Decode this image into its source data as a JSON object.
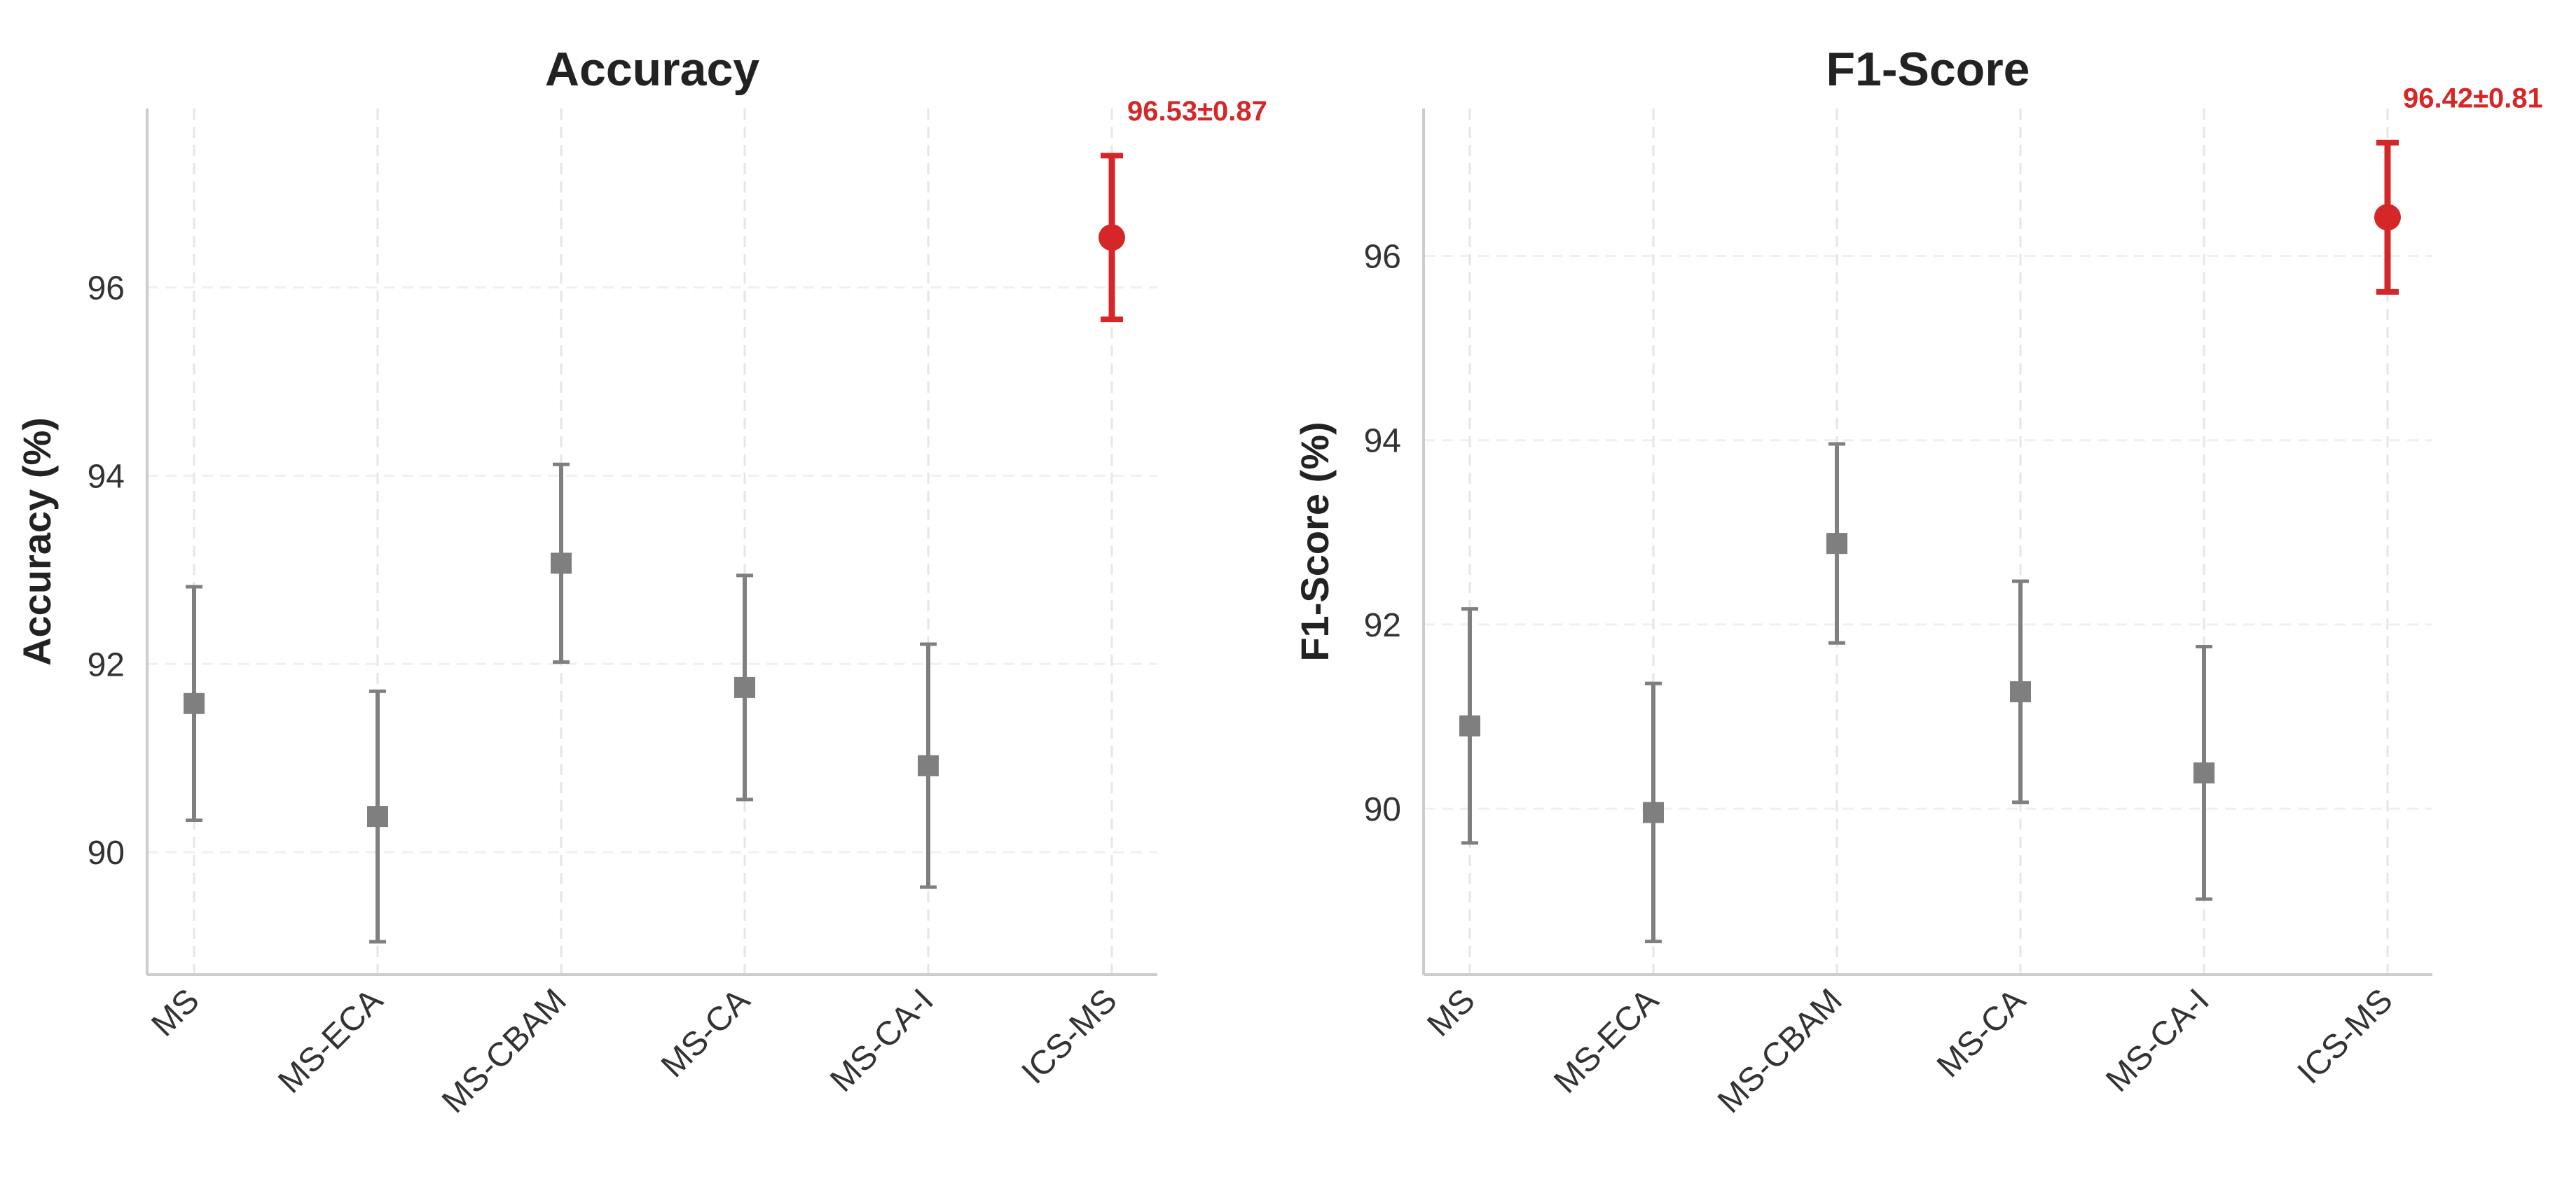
{
  "chart_data": [
    {
      "type": "errorbar",
      "title": "Accuracy",
      "ylabel": "Accuracy (%)",
      "xlabel": "",
      "categories": [
        "MS",
        "MS-ECA",
        "MS-CBAM",
        "MS-CA",
        "MS-CA-I",
        "ICS-MS"
      ],
      "means": [
        91.58,
        90.38,
        93.07,
        91.75,
        90.92,
        96.53
      ],
      "errors": [
        1.24,
        1.33,
        1.05,
        1.19,
        1.29,
        0.87
      ],
      "ylim": [
        88.7,
        97.9
      ],
      "yticks": [
        90,
        92,
        94,
        96
      ],
      "highlight_index": 5,
      "annotation": "96.53±0.87",
      "colors": {
        "default": "#7f7f7f",
        "highlight": "#d62728"
      }
    },
    {
      "type": "errorbar",
      "title": "F1-Score",
      "ylabel": "F1-Score (%)",
      "xlabel": "",
      "categories": [
        "MS",
        "MS-ECA",
        "MS-CBAM",
        "MS-CA",
        "MS-CA-I",
        "ICS-MS"
      ],
      "means": [
        90.9,
        89.96,
        92.88,
        91.27,
        90.39,
        96.42
      ],
      "errors": [
        1.27,
        1.4,
        1.08,
        1.2,
        1.37,
        0.81
      ],
      "ylim": [
        88.2,
        97.6
      ],
      "yticks": [
        90,
        92,
        94,
        96
      ],
      "highlight_index": 5,
      "annotation": "96.42±0.81",
      "colors": {
        "default": "#7f7f7f",
        "highlight": "#d62728"
      }
    }
  ]
}
